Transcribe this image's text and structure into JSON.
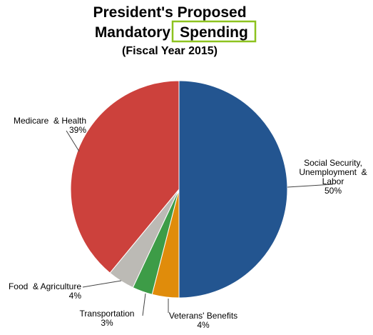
{
  "chart_data": {
    "type": "pie",
    "title": {
      "line1": "President's Proposed",
      "line2_prefix": "Mandatory",
      "line2_highlight": "Spending",
      "subtitle": "(Fiscal Year 2015)"
    },
    "slices": [
      {
        "name_lines": [
          "Social Security,",
          "Unemployment  &",
          "Labor"
        ],
        "value": 50,
        "value_label": "50%",
        "color": "#235590"
      },
      {
        "name_lines": [
          "Veterans' Benefits"
        ],
        "value": 4,
        "value_label": "4%",
        "color": "#e08c0b"
      },
      {
        "name_lines": [
          "Transportation"
        ],
        "value": 3,
        "value_label": "3%",
        "color": "#3d9c47"
      },
      {
        "name_lines": [
          "Food  & Agriculture"
        ],
        "value": 4,
        "value_label": "4%",
        "color": "#bcbab5"
      },
      {
        "name_lines": [
          "Medicare  & Health"
        ],
        "value": 39,
        "value_label": "39%",
        "color": "#cc413c"
      }
    ],
    "highlight_color": "#8dc21f"
  }
}
